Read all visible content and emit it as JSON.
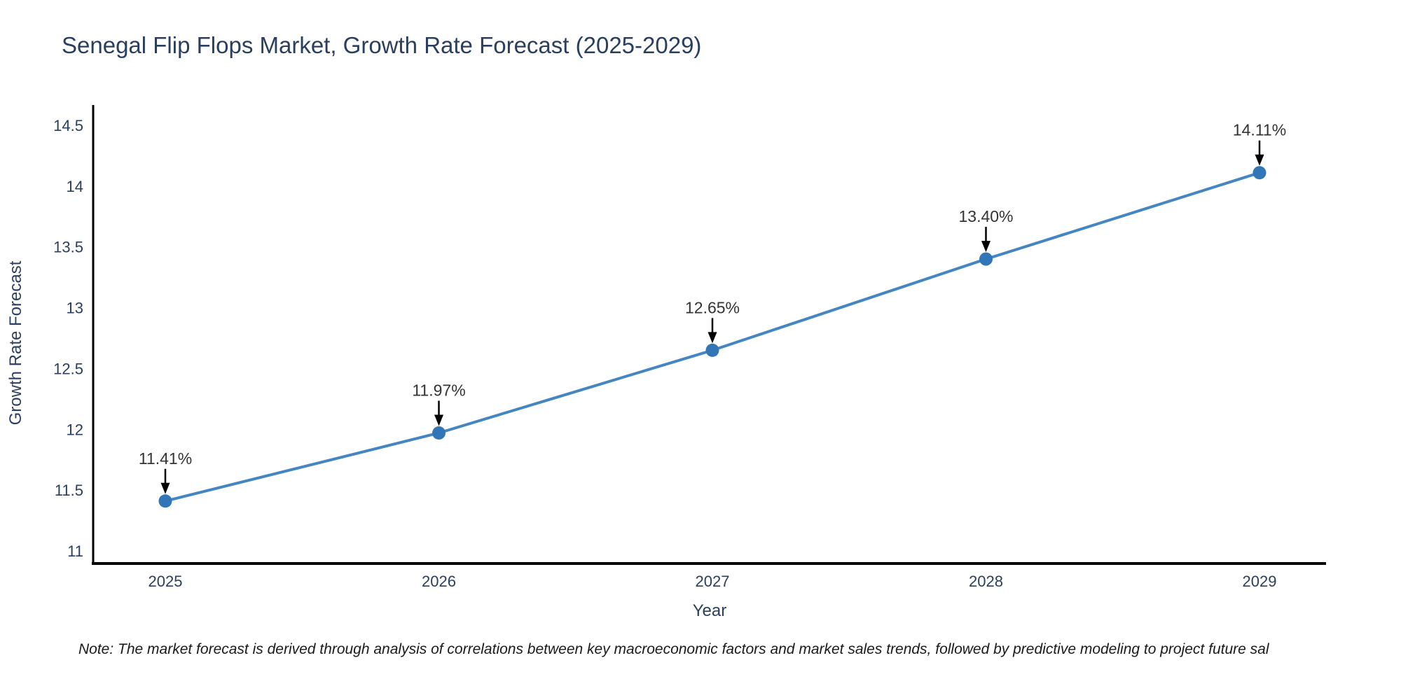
{
  "title": "Senegal Flip Flops Market, Growth Rate Forecast (2025-2029)",
  "note": "Note: The market forecast is derived through analysis of correlations between key macroeconomic factors and market sales trends, followed by predictive modeling to project future sal",
  "chart_data": {
    "type": "line",
    "title": "Senegal Flip Flops Market, Growth Rate Forecast (2025-2029)",
    "xlabel": "Year",
    "ylabel": "Growth Rate Forecast",
    "x": [
      2025,
      2026,
      2027,
      2028,
      2029
    ],
    "y": [
      11.41,
      11.97,
      12.65,
      13.4,
      14.11
    ],
    "point_labels": [
      "11.41%",
      "11.97%",
      "12.65%",
      "13.40%",
      "14.11%"
    ],
    "x_ticks": [
      "2025",
      "2026",
      "2027",
      "2028",
      "2029"
    ],
    "y_ticks": [
      11,
      11.5,
      12,
      12.5,
      13,
      13.5,
      14,
      14.5
    ],
    "xlim": [
      2024.74,
      2029.24
    ],
    "ylim": [
      10.9,
      14.67
    ],
    "grid": false,
    "legend": "none",
    "markers": true,
    "annotations": "arrow-down-to-point",
    "colors": {
      "line": "#4386c1",
      "marker": "#3376b8",
      "arrow": "#000000",
      "axis_line": "#000000",
      "tick_text": "#2a3f5f",
      "annotation_text": "#333333",
      "title_text": "#2a3f5f",
      "note_text": "#1a1a1a",
      "background": "#ffffff"
    }
  }
}
